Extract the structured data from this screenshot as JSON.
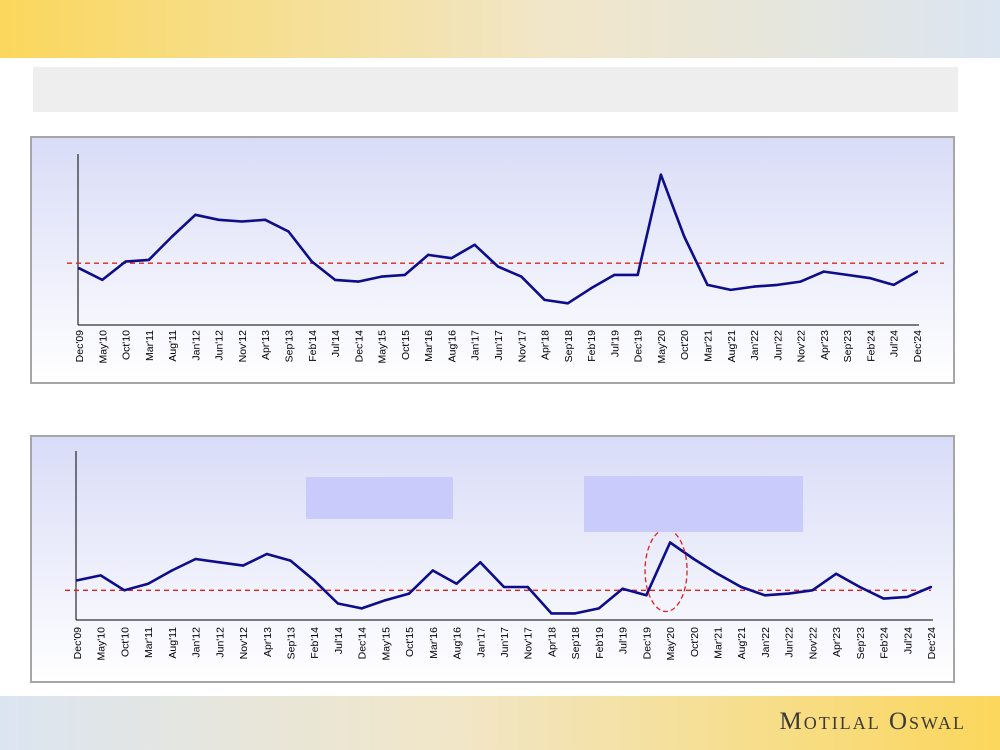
{
  "brand": {
    "logo_text": "Motilal Oswal"
  },
  "colors": {
    "series": "#0d0d8c",
    "average": "#e0241b",
    "panel_top": "#d9dcf7"
  },
  "chart_data": [
    {
      "type": "line",
      "title": "",
      "xlabel": "",
      "ylabel": "",
      "ylim": [
        0,
        100
      ],
      "legend": "none",
      "grid": false,
      "categories": [
        "Dec'09",
        "May'10",
        "Oct'10",
        "Mar'11",
        "Aug'11",
        "Jan'12",
        "Jun'12",
        "Nov'12",
        "Apr'13",
        "Sep'13",
        "Feb'14",
        "Jul'14",
        "Dec'14",
        "May'15",
        "Oct'15",
        "Mar'16",
        "Aug'16",
        "Jan'17",
        "Jun'17",
        "Nov'17",
        "Apr'18",
        "Sep'18",
        "Feb'19",
        "Jul'19",
        "Dec'19",
        "May'20",
        "Oct'20",
        "Mar'21",
        "Aug'21",
        "Jan'22",
        "Jun'22",
        "Nov'22",
        "Apr'23",
        "Sep'23",
        "Feb'24",
        "Jul'24",
        "Dec'24"
      ],
      "series": [
        {
          "values": [
            34,
            27,
            38,
            39,
            53,
            66,
            63,
            62,
            63,
            56,
            38,
            27,
            26,
            29,
            30,
            42,
            40,
            48,
            35,
            29,
            15,
            13,
            22,
            30,
            30,
            90,
            53,
            24,
            21,
            23,
            24,
            26,
            32,
            30,
            28,
            24,
            32
          ]
        }
      ],
      "average": 37
    },
    {
      "type": "line",
      "title": "",
      "xlabel": "",
      "ylabel": "",
      "ylim": [
        0,
        100
      ],
      "legend": "none",
      "grid": false,
      "categories": [
        "Dec'09",
        "May'10",
        "Oct'10",
        "Mar'11",
        "Aug'11",
        "Jan'12",
        "Jun'12",
        "Nov'12",
        "Apr'13",
        "Sep'13",
        "Feb'14",
        "Jul'14",
        "Dec'14",
        "May'15",
        "Oct'15",
        "Mar'16",
        "Aug'16",
        "Jan'17",
        "Jun'17",
        "Nov'17",
        "Apr'18",
        "Sep'18",
        "Feb'19",
        "Jul'19",
        "Dec'19",
        "May'20",
        "Oct'20",
        "Mar'21",
        "Aug'21",
        "Jan'22",
        "Jun'22",
        "Nov'22",
        "Apr'23",
        "Sep'23",
        "Feb'24",
        "Jul'24",
        "Dec'24"
      ],
      "series": [
        {
          "values": [
            24,
            27,
            18,
            22,
            30,
            37,
            35,
            33,
            40,
            36,
            24,
            10,
            7,
            12,
            16,
            30,
            22,
            35,
            20,
            20,
            4,
            4,
            7,
            19,
            15,
            47,
            37,
            28,
            20,
            15,
            16,
            18,
            28,
            20,
            13,
            14,
            20
          ]
        }
      ],
      "average": 18
    }
  ]
}
